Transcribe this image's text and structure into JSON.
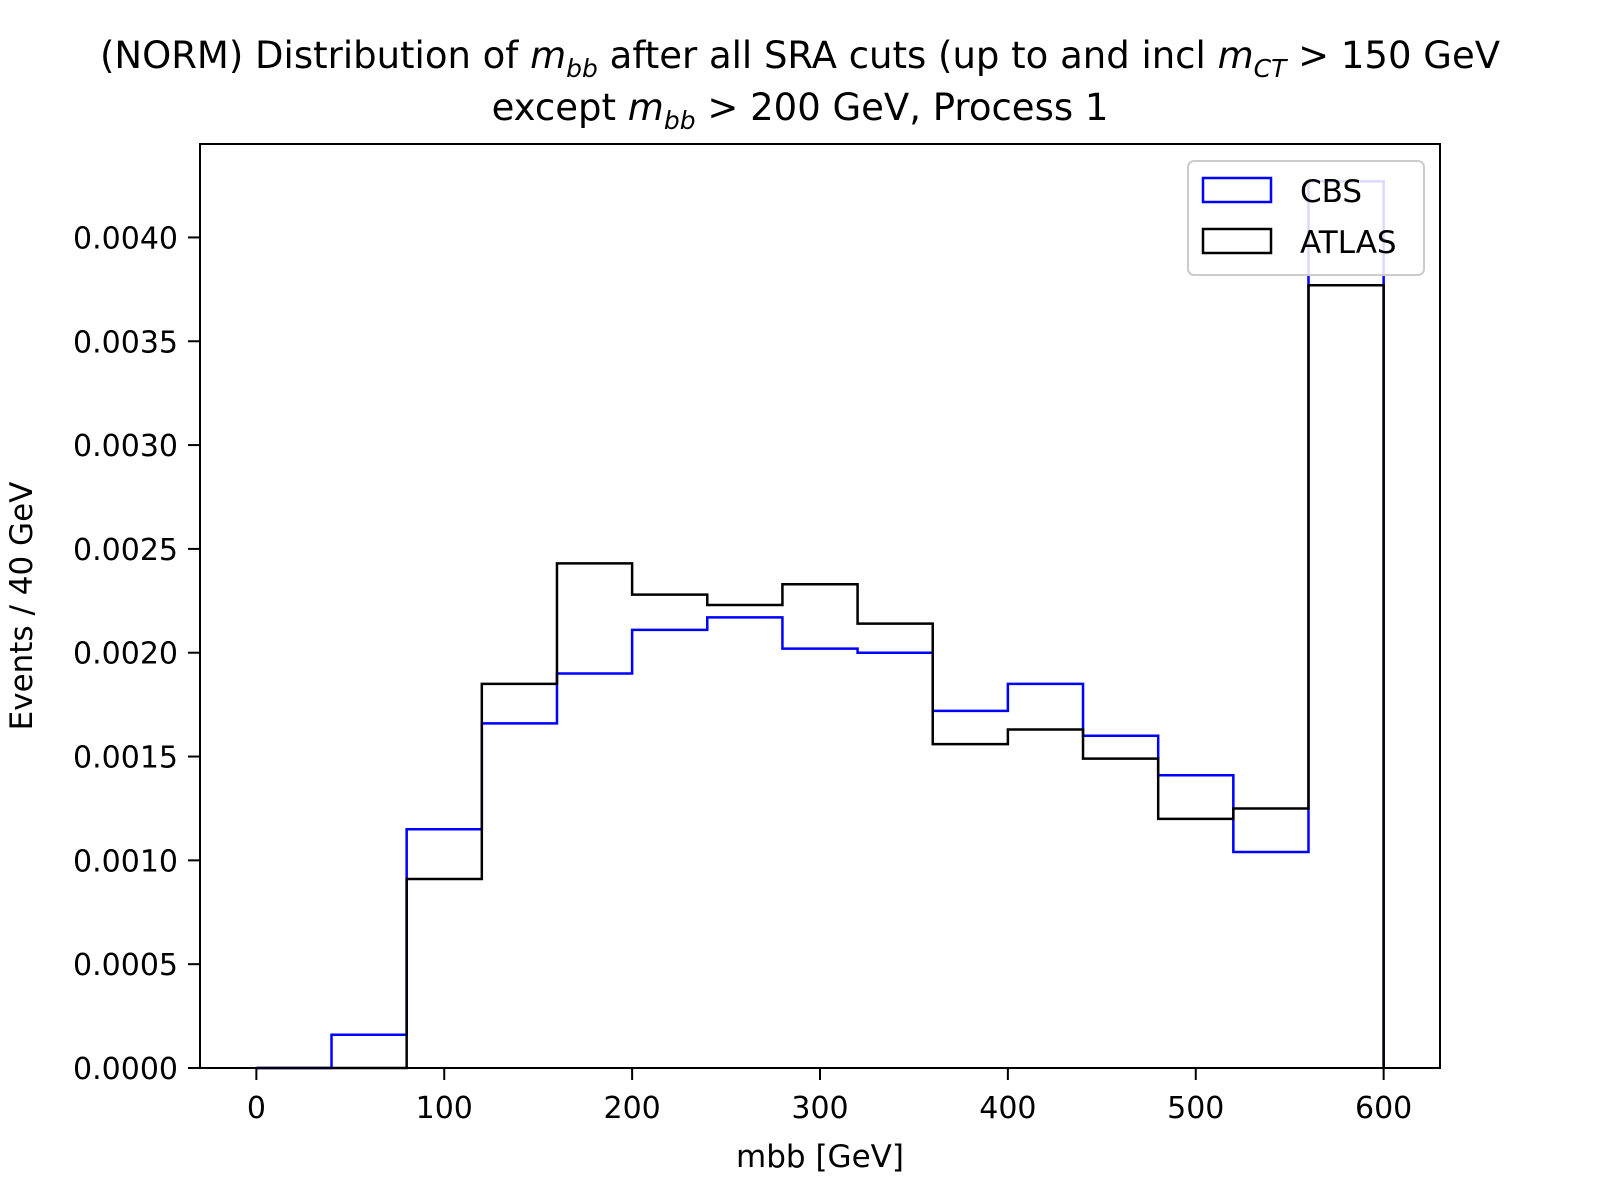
{
  "title": {
    "line1_prefix": "(NORM) Distribution of ",
    "line1_var": "m",
    "line1_var_sub": "bb",
    "line1_middle": " after all SRA cuts (up to and incl ",
    "line1_cut_var": "m",
    "line1_cut_sub": "CT",
    "line1_cut_rest": " > 150 GeV",
    "line2_prefix": "except ",
    "line2_var": "m",
    "line2_var_sub": "bb",
    "line2_rest": " > 200 GeV, Process 1"
  },
  "chart_data": {
    "type": "step-histogram",
    "xlabel": "mbb [GeV]",
    "ylabel": "Events / 40 GeV",
    "xlim": [
      -30,
      630
    ],
    "ylim": [
      0.0,
      0.00445
    ],
    "xticks": [
      0,
      100,
      200,
      300,
      400,
      500,
      600
    ],
    "yticks": [
      0.0,
      0.0005,
      0.001,
      0.0015,
      0.002,
      0.0025,
      0.003,
      0.0035,
      0.004
    ],
    "ytick_labels": [
      "0.0000",
      "0.0005",
      "0.0010",
      "0.0015",
      "0.0020",
      "0.0025",
      "0.0030",
      "0.0035",
      "0.0040"
    ],
    "bin_edges": [
      0,
      40,
      80,
      120,
      160,
      200,
      240,
      280,
      320,
      360,
      400,
      440,
      480,
      520,
      560,
      600
    ],
    "series": [
      {
        "name": "CBS",
        "color": "#0000ff",
        "values": [
          0.0,
          0.00016,
          0.00115,
          0.00166,
          0.0019,
          0.00211,
          0.00217,
          0.00202,
          0.002,
          0.00172,
          0.00185,
          0.0016,
          0.00141,
          0.00104,
          0.00427
        ]
      },
      {
        "name": "ATLAS",
        "color": "#000000",
        "values": [
          0.0,
          0.0,
          0.00091,
          0.00185,
          0.00243,
          0.00228,
          0.00223,
          0.00233,
          0.00214,
          0.00156,
          0.00163,
          0.00149,
          0.0012,
          0.00125,
          0.00377
        ]
      }
    ],
    "legend_position": "upper right",
    "grid": false
  }
}
